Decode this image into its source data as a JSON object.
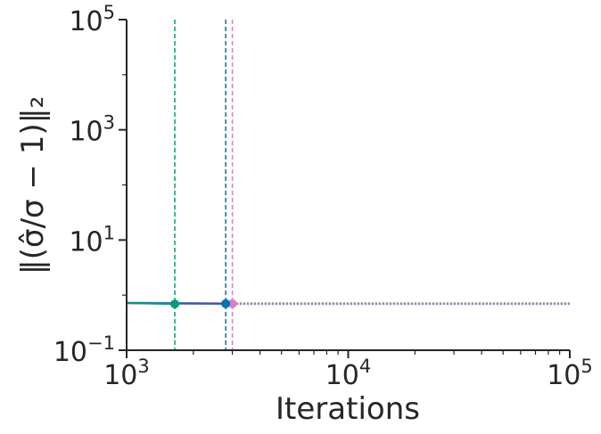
{
  "chart_data": {
    "type": "line",
    "title": "",
    "xlabel": "Iterations",
    "ylabel": "‖(σ̂/σ − 1)‖₂",
    "xscale": "log",
    "yscale": "log",
    "xlim": [
      1000,
      100000
    ],
    "ylim": [
      0.1,
      100000
    ],
    "x_ticks": [
      {
        "value": 1000,
        "base": "10",
        "exp": "3"
      },
      {
        "value": 10000,
        "base": "10",
        "exp": "4"
      },
      {
        "value": 100000,
        "base": "10",
        "exp": "5"
      }
    ],
    "y_ticks": [
      {
        "value": 0.1,
        "base": "10",
        "exp": "−1"
      },
      {
        "value": 10,
        "base": "10",
        "exp": "1"
      },
      {
        "value": 1000,
        "base": "10",
        "exp": "3"
      },
      {
        "value": 100000,
        "base": "10",
        "exp": "5"
      }
    ],
    "grid": false,
    "series": [
      {
        "color": "#dc7ec0",
        "style": "solid",
        "width": 3,
        "x": [
          1000,
          3000
        ],
        "y": [
          0.72,
          0.7
        ],
        "marker": {
          "x": 3000,
          "y": 0.7
        }
      },
      {
        "color": "#0173b2",
        "style": "solid",
        "width": 2,
        "x": [
          1000,
          2800
        ],
        "y": [
          0.72,
          0.7
        ],
        "marker": {
          "x": 2800,
          "y": 0.7
        }
      },
      {
        "color": "#029e73",
        "style": "solid",
        "width": 2,
        "x": [
          1000,
          1650
        ],
        "y": [
          0.72,
          0.69
        ],
        "marker": {
          "x": 1650,
          "y": 0.69
        }
      },
      {
        "color": "#949494",
        "style": "dotted",
        "width": 3,
        "x": [
          2800,
          100000
        ],
        "y": [
          0.7,
          0.7
        ]
      },
      {
        "color": "#8c8cc8",
        "style": "dotted",
        "width": 2,
        "x": [
          3000,
          100000
        ],
        "y": [
          0.7,
          0.7
        ]
      }
    ],
    "vlines": [
      {
        "x": 1650,
        "color": "#029e73",
        "style": "dashed"
      },
      {
        "x": 2800,
        "color": "#0173b2",
        "style": "dashed"
      },
      {
        "x": 3000,
        "color": "#dc7ec0",
        "style": "dashed"
      }
    ]
  }
}
